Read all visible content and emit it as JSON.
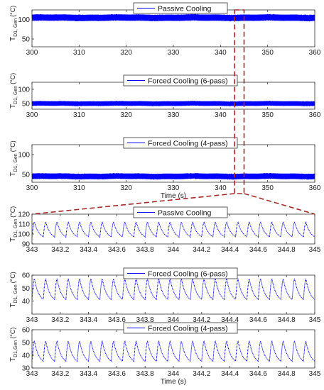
{
  "chart_data": [
    {
      "type": "line",
      "legend": "Passive Cooling",
      "ylabel": "T",
      "ylabel_sub": "D1, Gen",
      "ylabel_unit": "(°C)",
      "xlim": [
        300,
        360
      ],
      "ylim": [
        30,
        125
      ],
      "x_ticks": [
        "300",
        "310",
        "320",
        "330",
        "340",
        "350",
        "360"
      ],
      "y_ticks": [
        "50",
        "100"
      ],
      "xlabel": "",
      "series": [
        {
          "color": "#0000ff",
          "band_min": 97,
          "band_max": 113
        }
      ]
    },
    {
      "type": "line",
      "legend": "Forced Cooling (6-pass)",
      "ylabel": "T",
      "ylabel_sub": "D1, Gen",
      "ylabel_unit": "(°C)",
      "xlim": [
        300,
        360
      ],
      "ylim": [
        30,
        125
      ],
      "x_ticks": [
        "300",
        "310",
        "320",
        "330",
        "340",
        "350",
        "360"
      ],
      "y_ticks": [
        "50",
        "100"
      ],
      "xlabel": "",
      "series": [
        {
          "color": "#0000ff",
          "band_min": 42,
          "band_max": 58
        }
      ]
    },
    {
      "type": "line",
      "legend": "Forced Cooling (4-pass)",
      "ylabel": "T",
      "ylabel_sub": "D1, Gen",
      "ylabel_unit": "(°C)",
      "xlim": [
        300,
        360
      ],
      "ylim": [
        30,
        125
      ],
      "x_ticks": [
        "300",
        "310",
        "320",
        "330",
        "340",
        "350",
        "360"
      ],
      "y_ticks": [
        "50",
        "100"
      ],
      "xlabel": "Time (s)",
      "series": [
        {
          "color": "#0000ff",
          "band_min": 38,
          "band_max": 52
        }
      ]
    },
    {
      "type": "line",
      "legend": "Passive Cooling",
      "ylabel": "T",
      "ylabel_sub": "D1, Gen",
      "ylabel_unit": "(°C)",
      "xlim": [
        343,
        345
      ],
      "ylim": [
        90,
        120
      ],
      "x_ticks": [
        "343",
        "343.2",
        "343.4",
        "343.6",
        "343.8",
        "344",
        "344.2",
        "344.4",
        "344.6",
        "344.8",
        "345"
      ],
      "y_ticks": [
        "90",
        "100",
        "110",
        "120"
      ],
      "xlabel": "",
      "series": [
        {
          "color": "#0000ff",
          "cycles_per_s": 12.5,
          "y_min": 97,
          "y_max": 112
        }
      ]
    },
    {
      "type": "line",
      "legend": "Forced Cooling (6-pass)",
      "ylabel": "T",
      "ylabel_sub": "D1, Gen",
      "ylabel_unit": "(°C)",
      "xlim": [
        343,
        345
      ],
      "ylim": [
        30,
        60
      ],
      "x_ticks": [
        "343",
        "343.2",
        "343.4",
        "343.6",
        "343.8",
        "344",
        "344.2",
        "344.4",
        "344.6",
        "344.8",
        "345"
      ],
      "y_ticks": [
        "40",
        "50",
        "60"
      ],
      "xlabel": "",
      "series": [
        {
          "color": "#0000ff",
          "cycles_per_s": 12.5,
          "y_min": 41,
          "y_max": 57
        }
      ]
    },
    {
      "type": "line",
      "legend": "Forced Cooling (4-pass)",
      "ylabel": "T",
      "ylabel_sub": "D1,Gen",
      "ylabel_unit": "(°C)",
      "xlim": [
        343,
        345
      ],
      "ylim": [
        30,
        60
      ],
      "x_ticks": [
        "343",
        "343.2",
        "343.4",
        "343.6",
        "343.8",
        "344",
        "344.2",
        "344.4",
        "344.6",
        "344.8",
        "345"
      ],
      "y_ticks": [
        "30",
        "40",
        "50",
        "60"
      ],
      "xlabel": "Time (s)",
      "series": [
        {
          "color": "#0000ff",
          "cycles_per_s": 12.5,
          "y_min": 35,
          "y_max": 51
        }
      ]
    }
  ],
  "zoom": {
    "from": [
      343,
      345
    ],
    "color": "#a52a2a"
  }
}
